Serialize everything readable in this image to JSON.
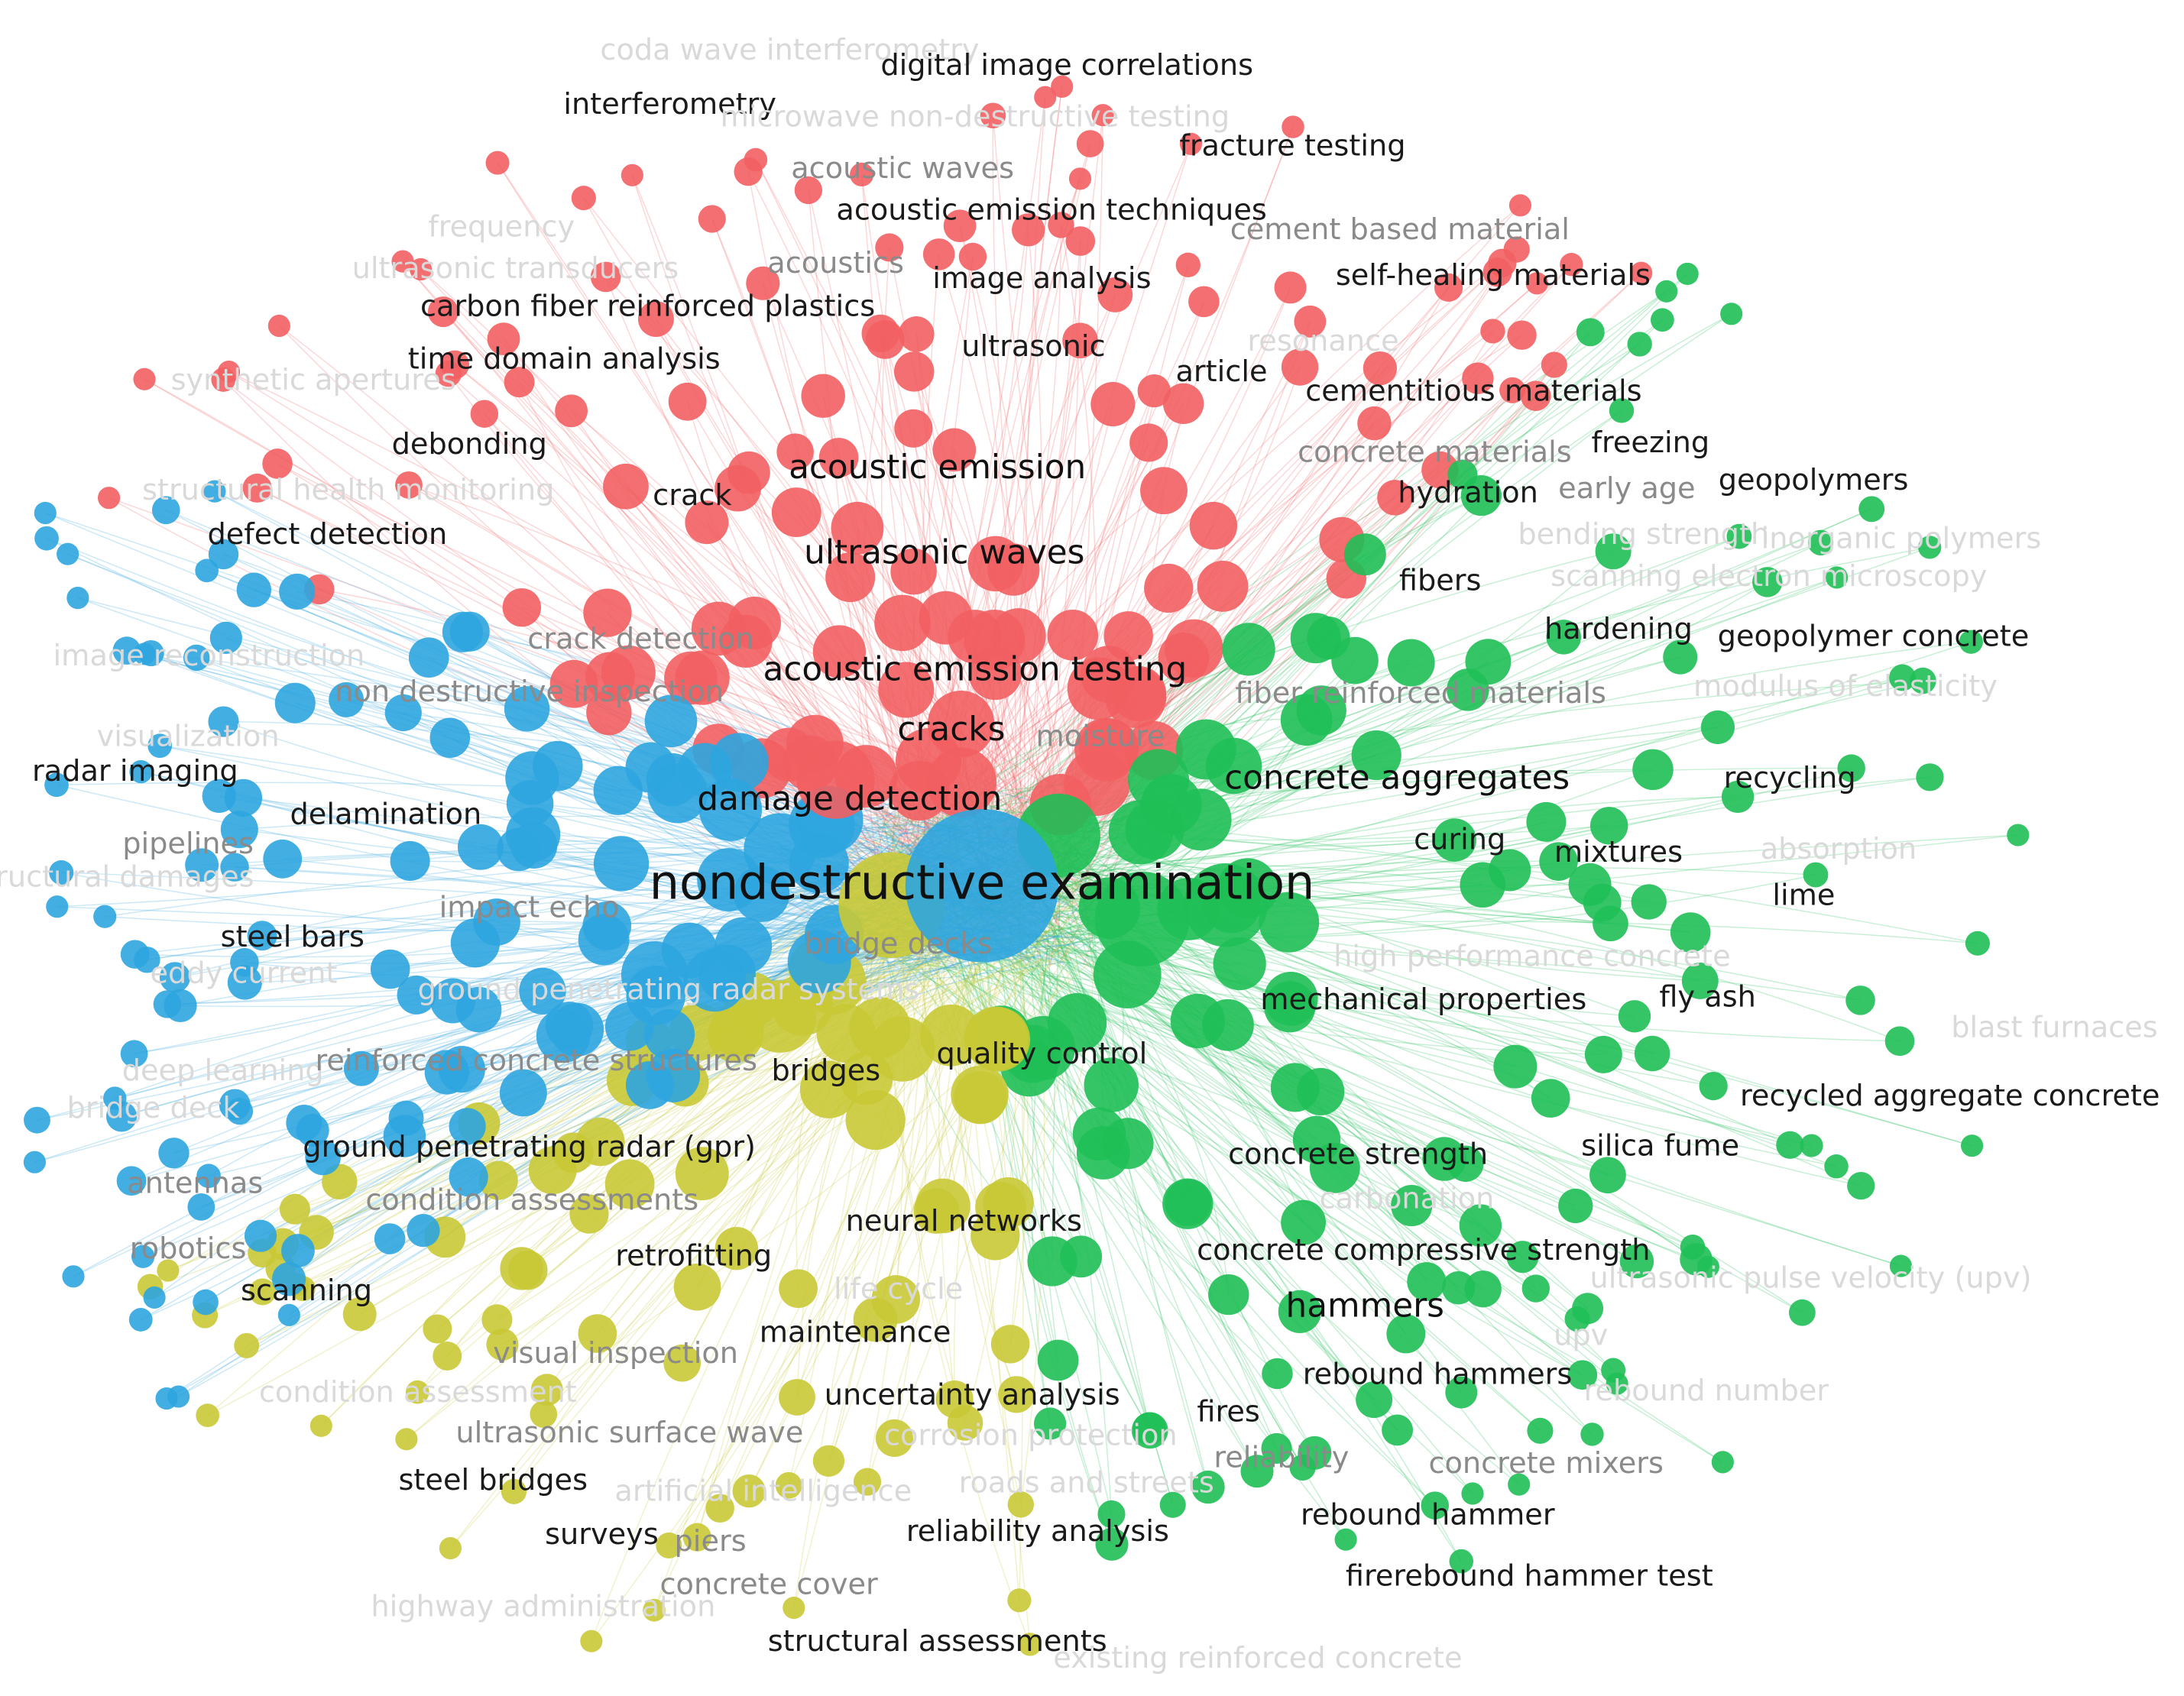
{
  "clusters": {
    "red": "#f25f62",
    "blue": "#2ea5df",
    "green": "#1fbf57",
    "yellow": "#c9c936"
  },
  "labels": [
    {
      "text": "coda wave interferometry",
      "cluster": "red",
      "prominence": "faint"
    },
    {
      "text": "digital image correlations",
      "cluster": "red",
      "prominence": "normal"
    },
    {
      "text": "interferometry",
      "cluster": "red",
      "prominence": "normal"
    },
    {
      "text": "microwave non-destructive testing",
      "cluster": "red",
      "prominence": "faint"
    },
    {
      "text": "fracture testing",
      "cluster": "red",
      "prominence": "normal"
    },
    {
      "text": "acoustic waves",
      "cluster": "red",
      "prominence": "gray"
    },
    {
      "text": "acoustic emission techniques",
      "cluster": "red",
      "prominence": "normal"
    },
    {
      "text": "cement based material",
      "cluster": "red",
      "prominence": "gray"
    },
    {
      "text": "frequency",
      "cluster": "blue",
      "prominence": "faint"
    },
    {
      "text": "ultrasonic transducers",
      "cluster": "blue",
      "prominence": "faint"
    },
    {
      "text": "acoustics",
      "cluster": "red",
      "prominence": "gray"
    },
    {
      "text": "image analysis",
      "cluster": "red",
      "prominence": "normal"
    },
    {
      "text": "self-healing materials",
      "cluster": "green",
      "prominence": "normal"
    },
    {
      "text": "carbon fiber reinforced plastics",
      "cluster": "blue",
      "prominence": "normal"
    },
    {
      "text": "time domain analysis",
      "cluster": "blue",
      "prominence": "normal"
    },
    {
      "text": "ultrasonic",
      "cluster": "red",
      "prominence": "normal"
    },
    {
      "text": "resonance",
      "cluster": "red",
      "prominence": "faint"
    },
    {
      "text": "synthetic apertures",
      "cluster": "blue",
      "prominence": "faint"
    },
    {
      "text": "article",
      "cluster": "red",
      "prominence": "normal"
    },
    {
      "text": "cementitious materials",
      "cluster": "green",
      "prominence": "normal"
    },
    {
      "text": "debonding",
      "cluster": "red",
      "prominence": "normal"
    },
    {
      "text": "concrete materials",
      "cluster": "blue",
      "prominence": "gray"
    },
    {
      "text": "freezing",
      "cluster": "green",
      "prominence": "normal"
    },
    {
      "text": "structural health monitoring",
      "cluster": "blue",
      "prominence": "faint"
    },
    {
      "text": "crack",
      "cluster": "red",
      "prominence": "normal"
    },
    {
      "text": "acoustic emission",
      "cluster": "red",
      "prominence": "big"
    },
    {
      "text": "hydration",
      "cluster": "green",
      "prominence": "normal"
    },
    {
      "text": "early age",
      "cluster": "green",
      "prominence": "gray"
    },
    {
      "text": "geopolymers",
      "cluster": "green",
      "prominence": "normal"
    },
    {
      "text": "defect detection",
      "cluster": "blue",
      "prominence": "normal"
    },
    {
      "text": "ultrasonic waves",
      "cluster": "red",
      "prominence": "big"
    },
    {
      "text": "bending strength",
      "cluster": "green",
      "prominence": "faint"
    },
    {
      "text": "inorganic polymers",
      "cluster": "green",
      "prominence": "faint"
    },
    {
      "text": "fibers",
      "cluster": "red",
      "prominence": "normal"
    },
    {
      "text": "scanning electron microscopy",
      "cluster": "green",
      "prominence": "faint"
    },
    {
      "text": "image reconstruction",
      "cluster": "blue",
      "prominence": "faint"
    },
    {
      "text": "crack detection",
      "cluster": "red",
      "prominence": "gray"
    },
    {
      "text": "hardening",
      "cluster": "green",
      "prominence": "normal"
    },
    {
      "text": "geopolymer concrete",
      "cluster": "green",
      "prominence": "normal"
    },
    {
      "text": "acoustic emission testing",
      "cluster": "red",
      "prominence": "big"
    },
    {
      "text": "non destructive inspection",
      "cluster": "blue",
      "prominence": "gray"
    },
    {
      "text": "fiber reinforced materials",
      "cluster": "green",
      "prominence": "gray"
    },
    {
      "text": "modulus of elasticity",
      "cluster": "green",
      "prominence": "faint"
    },
    {
      "text": "visualization",
      "cluster": "blue",
      "prominence": "faint"
    },
    {
      "text": "cracks",
      "cluster": "red",
      "prominence": "big"
    },
    {
      "text": "moisture",
      "cluster": "blue",
      "prominence": "gray"
    },
    {
      "text": "radar imaging",
      "cluster": "blue",
      "prominence": "normal"
    },
    {
      "text": "concrete aggregates",
      "cluster": "green",
      "prominence": "big"
    },
    {
      "text": "recycling",
      "cluster": "green",
      "prominence": "normal"
    },
    {
      "text": "damage detection",
      "cluster": "blue",
      "prominence": "big"
    },
    {
      "text": "delamination",
      "cluster": "blue",
      "prominence": "normal"
    },
    {
      "text": "pipelines",
      "cluster": "yellow",
      "prominence": "gray"
    },
    {
      "text": "curing",
      "cluster": "green",
      "prominence": "normal"
    },
    {
      "text": "mixtures",
      "cluster": "green",
      "prominence": "normal"
    },
    {
      "text": "absorption",
      "cluster": "green",
      "prominence": "faint"
    },
    {
      "text": "structural damages",
      "cluster": "red",
      "prominence": "faint"
    },
    {
      "text": "nondestructive examination",
      "cluster": "blue",
      "prominence": "huge"
    },
    {
      "text": "lime",
      "cluster": "green",
      "prominence": "normal"
    },
    {
      "text": "impact echo",
      "cluster": "blue",
      "prominence": "gray"
    },
    {
      "text": "steel bars",
      "cluster": "red",
      "prominence": "normal"
    },
    {
      "text": "bridge decks",
      "cluster": "yellow",
      "prominence": "gray"
    },
    {
      "text": "high performance concrete",
      "cluster": "green",
      "prominence": "faint"
    },
    {
      "text": "eddy current",
      "cluster": "yellow",
      "prominence": "faint"
    },
    {
      "text": "ground penetrating radar systems",
      "cluster": "blue",
      "prominence": "faint"
    },
    {
      "text": "mechanical properties",
      "cluster": "green",
      "prominence": "normal"
    },
    {
      "text": "fly ash",
      "cluster": "green",
      "prominence": "normal"
    },
    {
      "text": "blast furnaces",
      "cluster": "green",
      "prominence": "faint"
    },
    {
      "text": "deep learning",
      "cluster": "blue",
      "prominence": "faint"
    },
    {
      "text": "reinforced concrete structures",
      "cluster": "red",
      "prominence": "gray"
    },
    {
      "text": "bridges",
      "cluster": "yellow",
      "prominence": "normal"
    },
    {
      "text": "quality control",
      "cluster": "green",
      "prominence": "normal"
    },
    {
      "text": "bridge deck",
      "cluster": "yellow",
      "prominence": "faint"
    },
    {
      "text": "recycled aggregate concrete",
      "cluster": "green",
      "prominence": "normal"
    },
    {
      "text": "ground penetrating radar (gpr)",
      "cluster": "blue",
      "prominence": "normal"
    },
    {
      "text": "concrete strength",
      "cluster": "green",
      "prominence": "normal"
    },
    {
      "text": "silica fume",
      "cluster": "green",
      "prominence": "normal"
    },
    {
      "text": "antennas",
      "cluster": "blue",
      "prominence": "gray"
    },
    {
      "text": "condition assessments",
      "cluster": "yellow",
      "prominence": "gray"
    },
    {
      "text": "carbonation",
      "cluster": "red",
      "prominence": "faint"
    },
    {
      "text": "neural networks",
      "cluster": "red",
      "prominence": "normal"
    },
    {
      "text": "robotics",
      "cluster": "yellow",
      "prominence": "gray"
    },
    {
      "text": "retrofitting",
      "cluster": "yellow",
      "prominence": "normal"
    },
    {
      "text": "concrete compressive strength",
      "cluster": "green",
      "prominence": "normal"
    },
    {
      "text": "ultrasonic pulse velocity (upv)",
      "cluster": "green",
      "prominence": "faint"
    },
    {
      "text": "life cycle",
      "cluster": "yellow",
      "prominence": "faint"
    },
    {
      "text": "scanning",
      "cluster": "blue",
      "prominence": "normal"
    },
    {
      "text": "hammers",
      "cluster": "green",
      "prominence": "big"
    },
    {
      "text": "upv",
      "cluster": "green",
      "prominence": "faint"
    },
    {
      "text": "maintenance",
      "cluster": "yellow",
      "prominence": "normal"
    },
    {
      "text": "visual inspection",
      "cluster": "yellow",
      "prominence": "gray"
    },
    {
      "text": "rebound hammers",
      "cluster": "green",
      "prominence": "normal"
    },
    {
      "text": "condition assessment",
      "cluster": "yellow",
      "prominence": "faint"
    },
    {
      "text": "rebound number",
      "cluster": "green",
      "prominence": "faint"
    },
    {
      "text": "uncertainty analysis",
      "cluster": "blue",
      "prominence": "normal"
    },
    {
      "text": "fires",
      "cluster": "green",
      "prominence": "normal"
    },
    {
      "text": "ultrasonic surface wave",
      "cluster": "blue",
      "prominence": "gray"
    },
    {
      "text": "corrosion protection",
      "cluster": "red",
      "prominence": "faint"
    },
    {
      "text": "reliability",
      "cluster": "yellow",
      "prominence": "gray"
    },
    {
      "text": "concrete mixers",
      "cluster": "green",
      "prominence": "gray"
    },
    {
      "text": "steel bridges",
      "cluster": "yellow",
      "prominence": "normal"
    },
    {
      "text": "artificial intelligence",
      "cluster": "blue",
      "prominence": "faint"
    },
    {
      "text": "roads and streets",
      "cluster": "red",
      "prominence": "faint"
    },
    {
      "text": "rebound hammer",
      "cluster": "green",
      "prominence": "normal"
    },
    {
      "text": "surveys",
      "cluster": "yellow",
      "prominence": "normal"
    },
    {
      "text": "piers",
      "cluster": "red",
      "prominence": "gray"
    },
    {
      "text": "reliability analysis",
      "cluster": "yellow",
      "prominence": "normal"
    },
    {
      "text": "concrete cover",
      "cluster": "yellow",
      "prominence": "gray"
    },
    {
      "text": "firerebound hammer test",
      "cluster": "green",
      "prominence": "normal"
    },
    {
      "text": "highway administration",
      "cluster": "yellow",
      "prominence": "faint"
    },
    {
      "text": "structural assessments",
      "cluster": "yellow",
      "prominence": "normal"
    },
    {
      "text": "existing reinforced concrete",
      "cluster": "green",
      "prominence": "faint"
    }
  ]
}
